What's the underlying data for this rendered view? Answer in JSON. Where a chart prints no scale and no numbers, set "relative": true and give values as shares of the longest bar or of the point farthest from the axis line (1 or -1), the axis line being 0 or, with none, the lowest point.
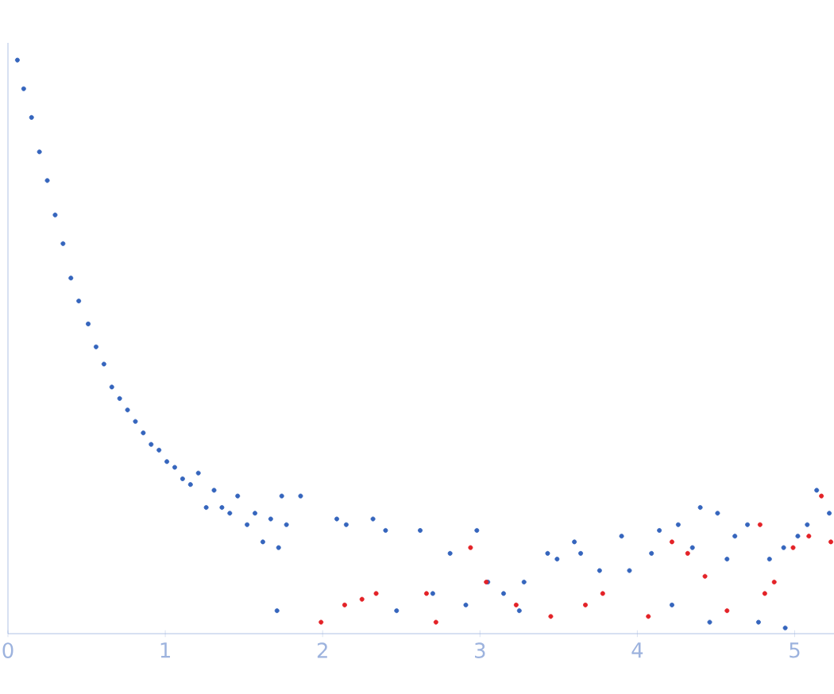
{
  "chart_data": {
    "type": "scatter",
    "relative": true,
    "xlim": [
      0,
      5.25
    ],
    "xticks": [
      0,
      1,
      2,
      3,
      4,
      5
    ],
    "series": [
      {
        "color": "#3565bd",
        "x": [
          0.06,
          0.1,
          0.15,
          0.2,
          0.25,
          0.3,
          0.35,
          0.4,
          0.45,
          0.51,
          0.56,
          0.61,
          0.66,
          0.71,
          0.76,
          0.81,
          0.86,
          0.91,
          0.96,
          1.01,
          1.06,
          1.11,
          1.16,
          1.21,
          1.26,
          1.31,
          1.36,
          1.41,
          1.46,
          1.52,
          1.57,
          1.62,
          1.67,
          1.71,
          1.72,
          1.74,
          1.77,
          1.86,
          2.09,
          2.15,
          2.32,
          2.4,
          2.47,
          2.62,
          2.7,
          2.81,
          2.91,
          2.98,
          3.05,
          3.15,
          3.25,
          3.28,
          3.43,
          3.49,
          3.6,
          3.64,
          3.76,
          3.9,
          3.95,
          4.09,
          4.14,
          4.22,
          4.26,
          4.35,
          4.4,
          4.46,
          4.51,
          4.57,
          4.62,
          4.7,
          4.77,
          4.84,
          4.93,
          4.94,
          5.02,
          5.08,
          5.14,
          5.22
        ],
        "values": [
          1.0,
          0.95,
          0.9,
          0.84,
          0.79,
          0.73,
          0.68,
          0.62,
          0.58,
          0.54,
          0.5,
          0.47,
          0.43,
          0.41,
          0.39,
          0.37,
          0.35,
          0.33,
          0.32,
          0.3,
          0.29,
          0.27,
          0.26,
          0.28,
          0.22,
          0.25,
          0.22,
          0.21,
          0.24,
          0.19,
          0.21,
          0.16,
          0.2,
          0.04,
          0.15,
          0.24,
          0.19,
          0.24,
          0.2,
          0.19,
          0.2,
          0.18,
          0.04,
          0.18,
          0.07,
          0.14,
          0.05,
          0.18,
          0.09,
          0.07,
          0.04,
          0.09,
          0.14,
          0.13,
          0.16,
          0.14,
          0.11,
          0.17,
          0.11,
          0.14,
          0.18,
          0.05,
          0.19,
          0.15,
          0.22,
          0.02,
          0.21,
          0.13,
          0.17,
          0.19,
          0.02,
          0.13,
          0.15,
          0.01,
          0.17,
          0.19,
          0.25,
          0.21
        ]
      },
      {
        "color": "#e32227",
        "x": [
          1.99,
          2.14,
          2.25,
          2.34,
          2.66,
          2.72,
          2.94,
          3.04,
          3.23,
          3.45,
          3.67,
          3.78,
          4.07,
          4.22,
          4.32,
          4.43,
          4.57,
          4.78,
          4.81,
          4.87,
          4.99,
          5.09,
          5.17,
          5.23
        ],
        "values": [
          0.02,
          0.05,
          0.06,
          0.07,
          0.07,
          0.02,
          0.15,
          0.09,
          0.05,
          0.03,
          0.05,
          0.07,
          0.03,
          0.16,
          0.14,
          0.1,
          0.04,
          0.19,
          0.07,
          0.09,
          0.15,
          0.17,
          0.24,
          0.16
        ]
      }
    ]
  }
}
